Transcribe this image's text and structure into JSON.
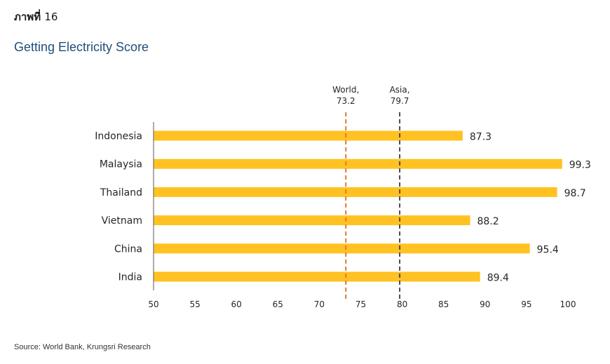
{
  "header": {
    "figure_label": "ภาพที่",
    "figure_number": "16",
    "title": "Getting Electricity Score"
  },
  "footer": {
    "source": "Source: World Bank, Krungsri Research"
  },
  "colors": {
    "bar": "#FFC222",
    "world_line": "#E07A2E",
    "asia_line": "#4D4D4D",
    "axis": "#595959",
    "text": "#262626"
  },
  "chart_data": {
    "type": "bar",
    "orientation": "horizontal",
    "title": "Getting Electricity Score",
    "categories": [
      "Indonesia",
      "Malaysia",
      "Thailand",
      "Vietnam",
      "China",
      "India"
    ],
    "values": [
      87.3,
      99.3,
      98.7,
      88.2,
      95.4,
      89.4
    ],
    "data_labels": [
      "87.3",
      "99.3",
      "98.7",
      "88.2",
      "95.4",
      "89.4"
    ],
    "xlim": [
      50,
      100
    ],
    "x_ticks": [
      50,
      55,
      60,
      65,
      70,
      75,
      80,
      85,
      90,
      95,
      100
    ],
    "grid": false,
    "reference_lines": [
      {
        "label_line1": "World,",
        "label_line2": "73.2",
        "value": 73.2,
        "style": "dashed",
        "color_key": "world_line"
      },
      {
        "label_line1": "Asia,",
        "label_line2": "79.7",
        "value": 79.7,
        "style": "dashed",
        "color_key": "asia_line"
      }
    ]
  }
}
